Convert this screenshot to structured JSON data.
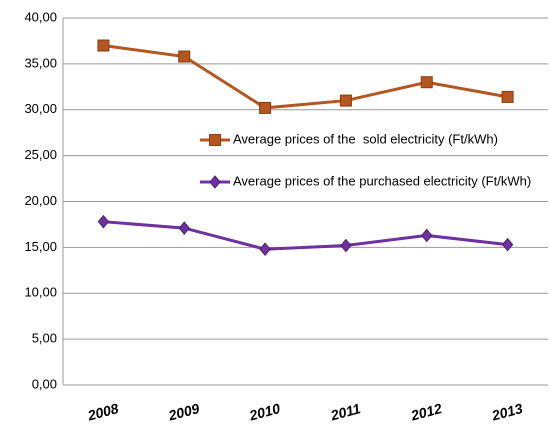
{
  "chart_data": {
    "type": "line",
    "categories": [
      "2008",
      "2009",
      "2010",
      "2011",
      "2012",
      "2013"
    ],
    "series": [
      {
        "name": "Average prices of the  sold electricity (Ft/kWh)",
        "color": "#b4561f",
        "marker": "square",
        "values": [
          37.0,
          35.8,
          30.2,
          31.0,
          33.0,
          31.4
        ]
      },
      {
        "name": "Average prices of the purchased electricity (Ft/kWh)",
        "color": "#7030a0",
        "marker": "diamond",
        "values": [
          17.8,
          17.1,
          14.8,
          15.2,
          16.3,
          15.3
        ]
      }
    ],
    "ylim": [
      0,
      40
    ],
    "yticks": [
      {
        "value": 0,
        "label": "0,00"
      },
      {
        "value": 5,
        "label": "5,00"
      },
      {
        "value": 10,
        "label": "10,00"
      },
      {
        "value": 15,
        "label": "15,00"
      },
      {
        "value": 20,
        "label": "20,00"
      },
      {
        "value": 25,
        "label": "25,00"
      },
      {
        "value": 30,
        "label": "30,00"
      },
      {
        "value": 35,
        "label": "35,00"
      },
      {
        "value": 40,
        "label": "40,00"
      }
    ],
    "grid": true
  }
}
